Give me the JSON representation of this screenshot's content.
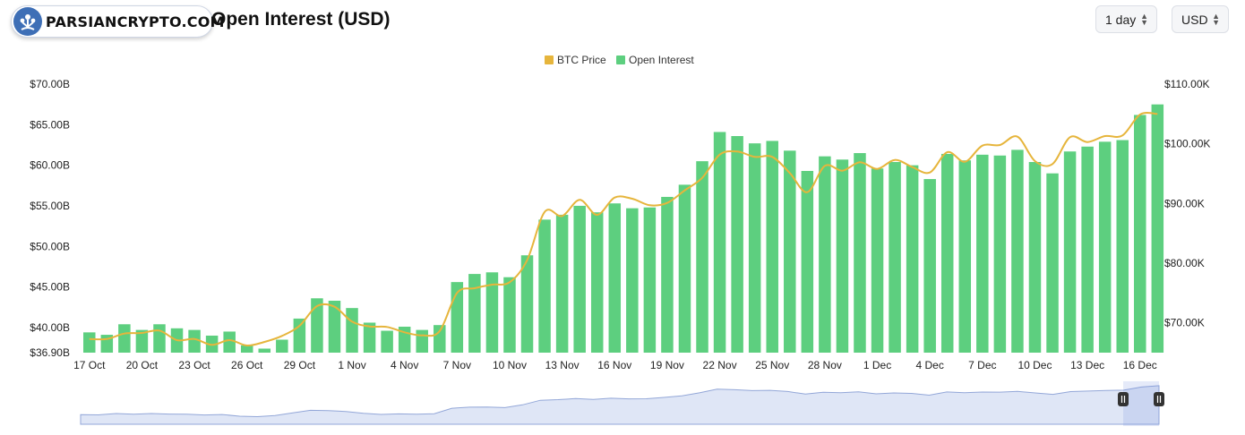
{
  "header": {
    "logo_text": "PARSIANCRYPTO.COM",
    "title": "Open Interest (USD)",
    "interval_select": "1 day",
    "currency_select": "USD"
  },
  "colors": {
    "open_interest": "#5dcf7f",
    "btc_price": "#e6b53c",
    "navigator_fill": "#dfe6f6",
    "navigator_line": "#93a7d8"
  },
  "chart_data": {
    "type": "bar",
    "legend": [
      "BTC Price",
      "Open Interest"
    ],
    "left_axis": {
      "ticks": [
        "$36.90B",
        "$40.00B",
        "$45.00B",
        "$50.00B",
        "$55.00B",
        "$60.00B",
        "$65.00B",
        "$70.00B"
      ],
      "min": 36.9,
      "max": 70.0
    },
    "right_axis": {
      "ticks": [
        "$70.00K",
        "$80.00K",
        "$90.00K",
        "$100.00K",
        "$110.00K"
      ],
      "min": 65.0,
      "max": 110.0
    },
    "x_tick_labels": [
      "17 Oct",
      "20 Oct",
      "23 Oct",
      "26 Oct",
      "29 Oct",
      "1 Nov",
      "4 Nov",
      "7 Nov",
      "10 Nov",
      "13 Nov",
      "16 Nov",
      "19 Nov",
      "22 Nov",
      "25 Nov",
      "28 Nov",
      "1 Dec",
      "4 Dec",
      "7 Dec",
      "10 Dec",
      "13 Dec",
      "16 Dec"
    ],
    "series": [
      {
        "name": "Open Interest",
        "unit": "B USD",
        "values": [
          39.4,
          39.1,
          40.4,
          39.7,
          40.4,
          39.9,
          39.7,
          39.0,
          39.5,
          37.8,
          37.4,
          38.5,
          41.1,
          43.6,
          43.3,
          42.4,
          40.6,
          39.6,
          40.1,
          39.7,
          40.3,
          45.6,
          46.6,
          46.8,
          46.2,
          48.9,
          53.3,
          53.9,
          55.0,
          54.2,
          55.3,
          54.7,
          54.8,
          56.1,
          57.6,
          60.5,
          64.1,
          63.6,
          62.7,
          63.0,
          61.8,
          59.3,
          61.1,
          60.7,
          61.5,
          59.6,
          60.4,
          60.0,
          58.3,
          61.4,
          60.6,
          61.3,
          61.2,
          61.9,
          60.4,
          59.0,
          61.7,
          62.3,
          62.9,
          63.1,
          66.2,
          67.5
        ]
      },
      {
        "name": "BTC Price",
        "unit": "K USD",
        "values": [
          67.3,
          67.3,
          68.2,
          68.3,
          68.7,
          67.1,
          67.3,
          66.3,
          67.1,
          66.2,
          66.8,
          67.8,
          69.5,
          72.8,
          72.7,
          70.2,
          69.4,
          69.3,
          68.4,
          67.9,
          68.6,
          75.0,
          75.8,
          76.4,
          76.8,
          80.5,
          88.6,
          87.9,
          90.6,
          88.1,
          91.0,
          90.8,
          89.7,
          90.1,
          92.2,
          94.3,
          98.2,
          98.7,
          97.8,
          97.8,
          95.1,
          91.9,
          96.3,
          95.5,
          96.9,
          95.8,
          97.3,
          96.1,
          95.2,
          98.6,
          97.0,
          99.7,
          99.8,
          101.2,
          97.1,
          96.6,
          101.1,
          100.3,
          101.3,
          101.4,
          104.9,
          105.0
        ]
      }
    ],
    "navigator_visible": true
  }
}
